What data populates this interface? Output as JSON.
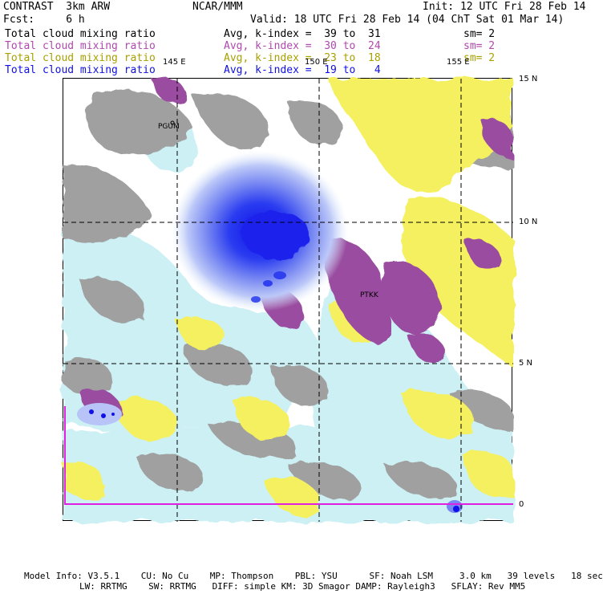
{
  "header": {
    "title": "CONTRAST  3km ARW",
    "center": "NCAR/MMM",
    "init": "Init: 12 UTC Fri 28 Feb 14",
    "fcst": "Fcst:     6 h",
    "valid": "Valid: 18 UTC Fri 28 Feb 14 (04 ChT Sat 01 Mar 14)"
  },
  "legend": [
    {
      "field": "Total cloud mixing ratio",
      "range": "Avg, k-index =  39 to  31",
      "sm": "sm= 2",
      "color": "#000000"
    },
    {
      "field": "Total cloud mixing ratio",
      "range": "Avg, k-index =  30 to  24",
      "sm": "sm= 2",
      "color": "#b048b0"
    },
    {
      "field": "Total cloud mixing ratio",
      "range": "Avg, k-index =  23 to  18",
      "sm": "sm= 2",
      "color": "#a8a000"
    },
    {
      "field": "Total cloud mixing ratio",
      "range": "Avg, k-index =  19 to   4",
      "sm": "",
      "color": "#1010e0"
    }
  ],
  "axes": {
    "lon_labels": [
      "145 E",
      "150 E",
      "155 E"
    ],
    "lat_labels": [
      "15 N",
      "10 N",
      "5 N",
      "0"
    ]
  },
  "stations": {
    "pgum": "PGUM",
    "ptkk": "PTKK"
  },
  "colors": {
    "high_cloud": "#a0a0a0",
    "mid_high_cloud": "#9a4ea0",
    "mid_cloud": "#f4f060",
    "low_cloud": "#ccf0f4",
    "core_dark": "#1010e8",
    "core_mid": "#6070f0",
    "core_light": "#b8c4f8",
    "grid": "#000000",
    "boundary": "#e020e0"
  },
  "footer": {
    "line1": "Model Info: V3.5.1    CU: No Cu    MP: Thompson    PBL: YSU      SF: Noah LSM     3.0 km   39 levels   18 sec",
    "line2": "LW: RRTMG    SW: RRTMG   DIFF: simple KM: 3D Smagor DAMP: Rayleigh3   SFLAY: Rev MM5"
  }
}
